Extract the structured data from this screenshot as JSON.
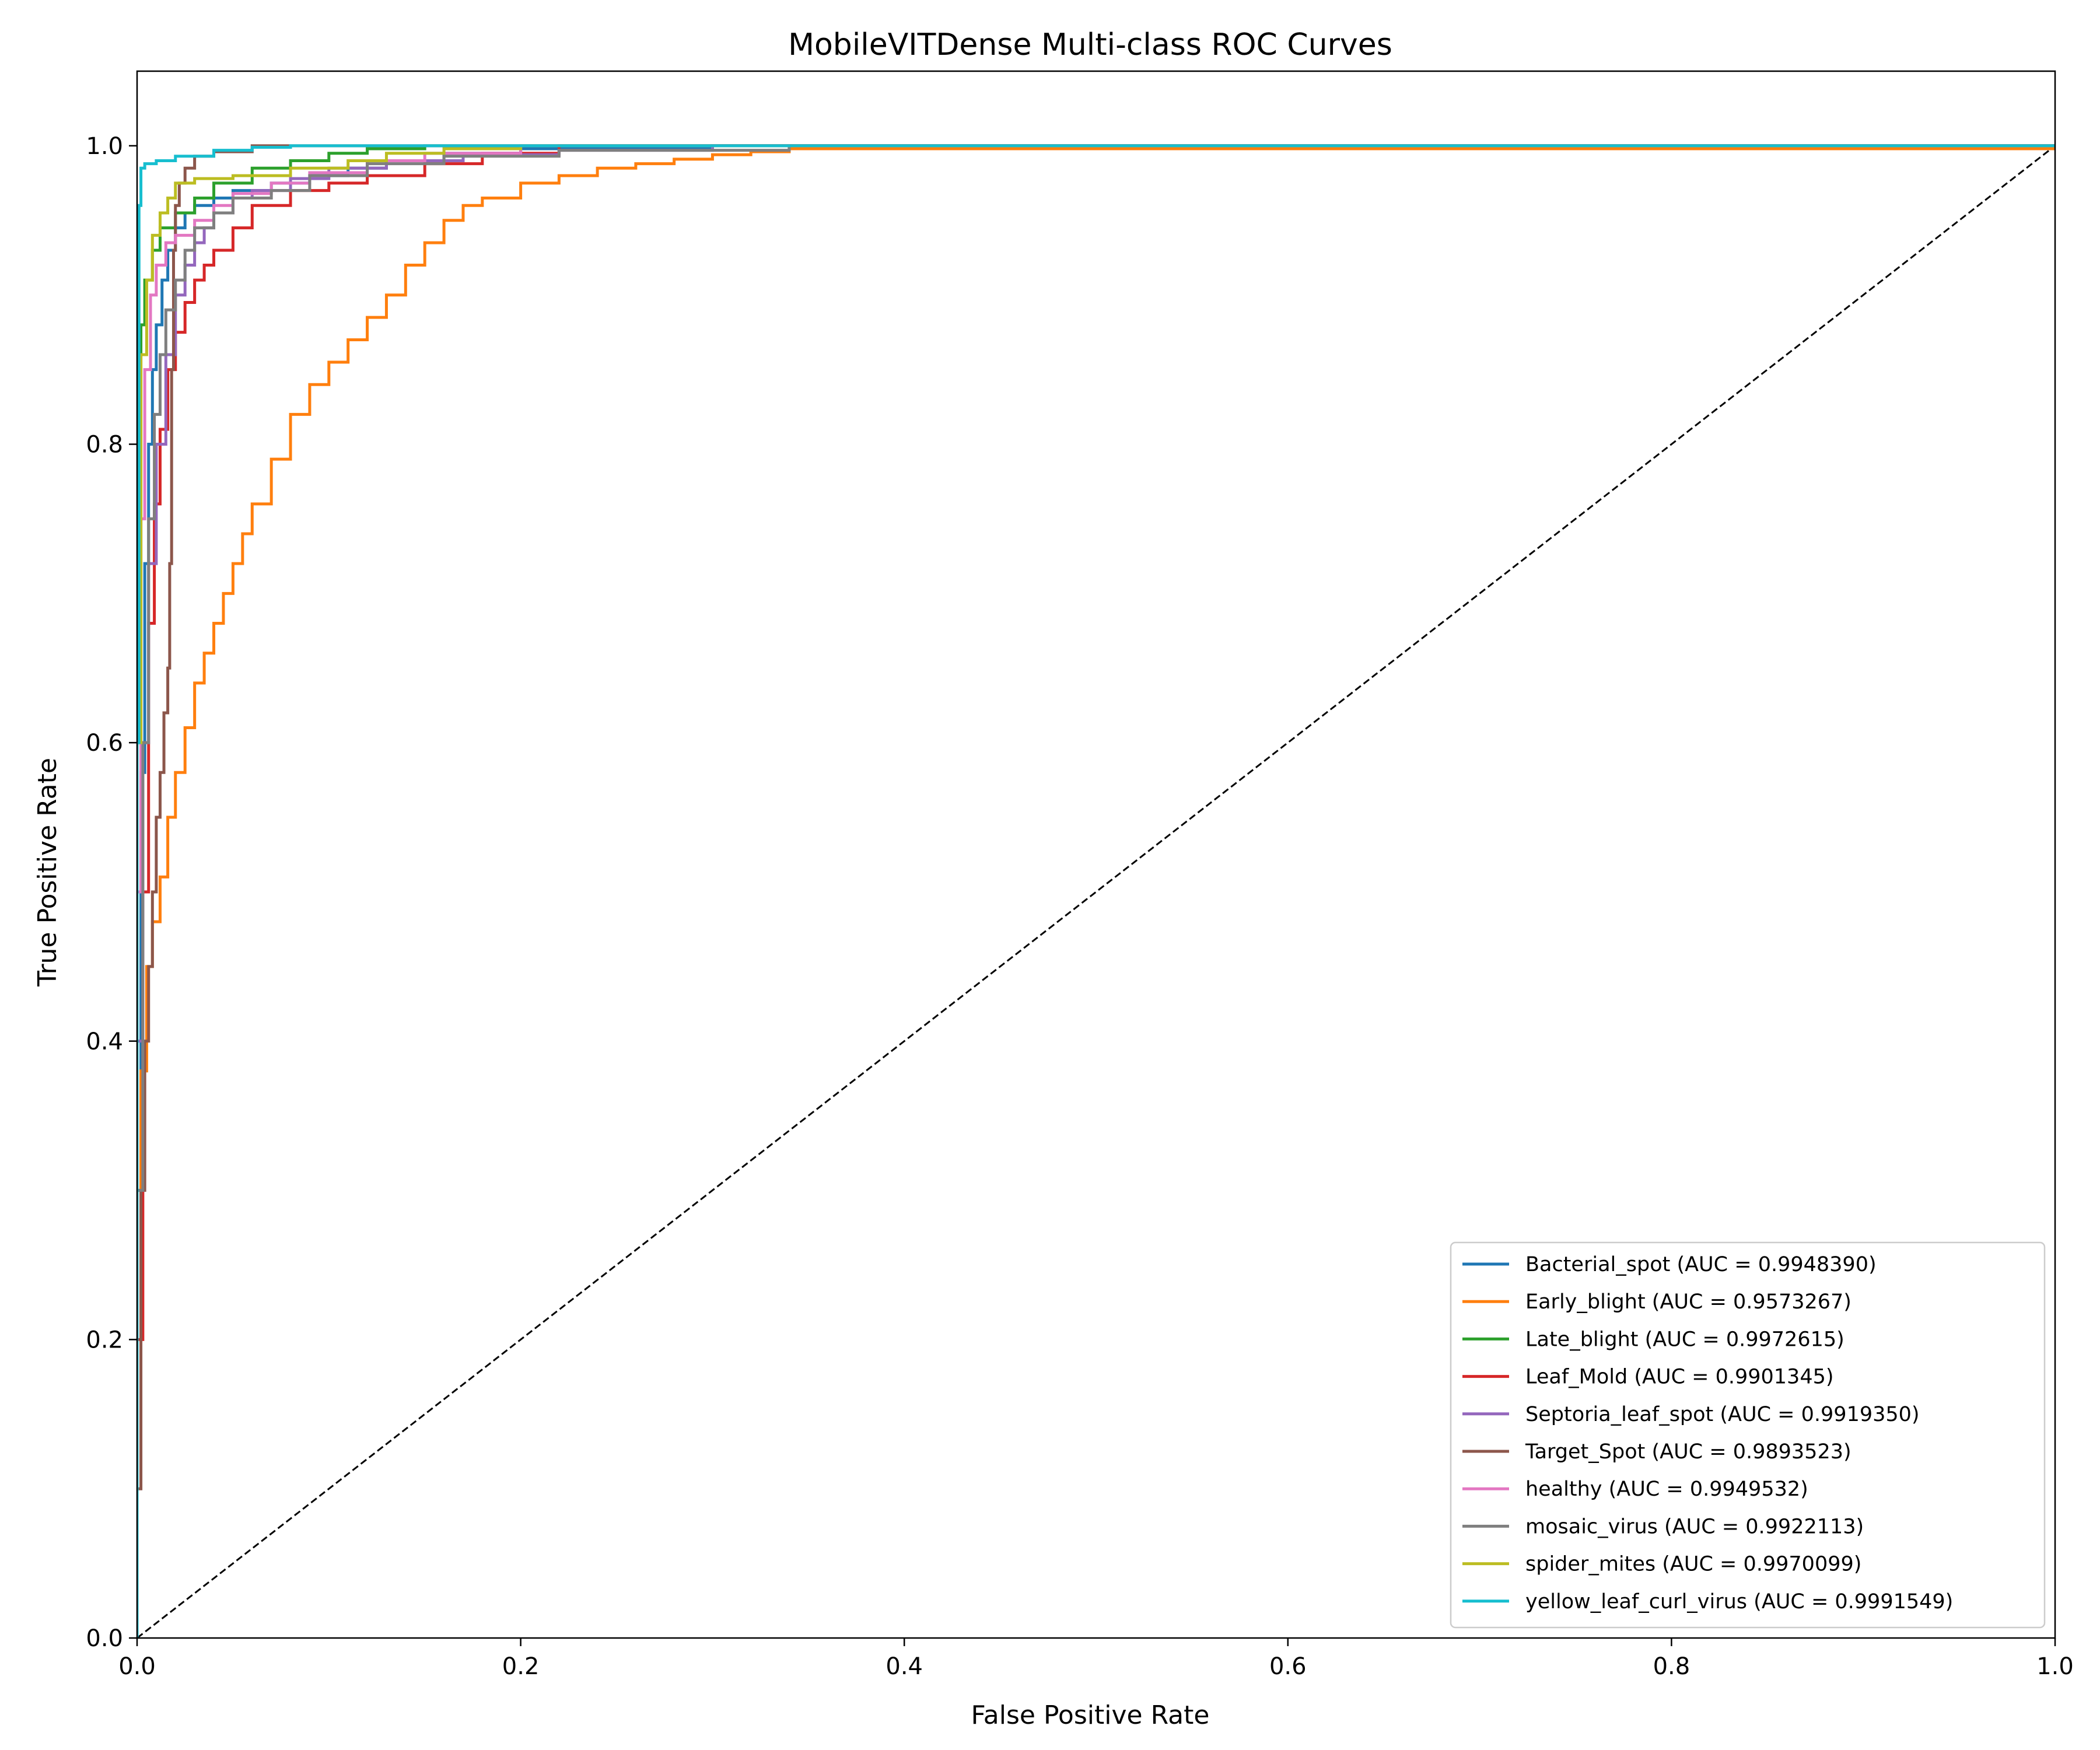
{
  "chart_data": {
    "type": "line",
    "title": "MobileVITDense Multi-class ROC Curves",
    "xlabel": "False Positive Rate",
    "ylabel": "True Positive Rate",
    "xlim": [
      0.0,
      1.0
    ],
    "ylim": [
      0.0,
      1.05
    ],
    "xticks": [
      "0.0",
      "0.2",
      "0.4",
      "0.6",
      "0.8",
      "1.0"
    ],
    "yticks": [
      "0.0",
      "0.2",
      "0.4",
      "0.6",
      "0.8",
      "1.0"
    ],
    "grid": false,
    "legend_position": "lower-right",
    "reference_line": {
      "style": "dashed",
      "color": "#000000",
      "x": [
        0,
        1
      ],
      "y": [
        0,
        1
      ]
    },
    "series": [
      {
        "name": "Bacterial_spot (AUC = 0.9948390)",
        "color": "#1f77b4",
        "x": [
          0,
          0,
          0.002,
          0.004,
          0.006,
          0.008,
          0.01,
          0.013,
          0.016,
          0.02,
          0.025,
          0.03,
          0.04,
          0.05,
          0.07,
          0.09,
          0.11,
          0.13,
          0.16,
          0.2,
          0.3,
          1.0
        ],
        "y": [
          0,
          0.3,
          0.58,
          0.72,
          0.8,
          0.85,
          0.88,
          0.91,
          0.93,
          0.945,
          0.955,
          0.96,
          0.965,
          0.97,
          0.975,
          0.98,
          0.985,
          0.99,
          0.995,
          0.998,
          1.0,
          1.0
        ]
      },
      {
        "name": "Early_blight (AUC = 0.9573267)",
        "color": "#ff7f0e",
        "x": [
          0,
          0,
          0.002,
          0.005,
          0.008,
          0.012,
          0.016,
          0.02,
          0.025,
          0.03,
          0.035,
          0.04,
          0.045,
          0.05,
          0.055,
          0.06,
          0.07,
          0.08,
          0.09,
          0.1,
          0.11,
          0.12,
          0.13,
          0.14,
          0.15,
          0.16,
          0.17,
          0.18,
          0.2,
          0.22,
          0.24,
          0.26,
          0.28,
          0.3,
          0.32,
          0.34,
          1.0
        ],
        "y": [
          0,
          0.3,
          0.38,
          0.45,
          0.48,
          0.51,
          0.55,
          0.58,
          0.61,
          0.64,
          0.66,
          0.68,
          0.7,
          0.72,
          0.74,
          0.76,
          0.79,
          0.82,
          0.84,
          0.855,
          0.87,
          0.885,
          0.9,
          0.92,
          0.935,
          0.95,
          0.96,
          0.965,
          0.975,
          0.98,
          0.985,
          0.988,
          0.991,
          0.994,
          0.996,
          0.998,
          1.0
        ]
      },
      {
        "name": "Late_blight (AUC = 0.9972615)",
        "color": "#2ca02c",
        "x": [
          0,
          0,
          0.002,
          0.004,
          0.008,
          0.012,
          0.02,
          0.03,
          0.04,
          0.06,
          0.08,
          0.1,
          0.12,
          0.15,
          1.0
        ],
        "y": [
          0,
          0.6,
          0.88,
          0.91,
          0.93,
          0.945,
          0.955,
          0.965,
          0.975,
          0.985,
          0.99,
          0.995,
          0.998,
          1.0,
          1.0
        ]
      },
      {
        "name": "Leaf_Mold (AUC = 0.9901345)",
        "color": "#d62728",
        "x": [
          0,
          0,
          0.003,
          0.006,
          0.009,
          0.012,
          0.016,
          0.02,
          0.025,
          0.03,
          0.035,
          0.04,
          0.05,
          0.06,
          0.08,
          0.1,
          0.12,
          0.15,
          0.18,
          0.22,
          1.0
        ],
        "y": [
          0,
          0.2,
          0.5,
          0.68,
          0.76,
          0.81,
          0.85,
          0.875,
          0.895,
          0.91,
          0.92,
          0.93,
          0.945,
          0.96,
          0.97,
          0.975,
          0.98,
          0.988,
          0.995,
          1.0,
          1.0
        ]
      },
      {
        "name": "Septoria_leaf_spot (AUC = 0.9919350)",
        "color": "#9467bd",
        "x": [
          0,
          0,
          0.003,
          0.006,
          0.01,
          0.015,
          0.02,
          0.025,
          0.03,
          0.035,
          0.04,
          0.05,
          0.06,
          0.08,
          0.1,
          0.13,
          0.17,
          0.22,
          0.3,
          1.0
        ],
        "y": [
          0,
          0.4,
          0.6,
          0.72,
          0.8,
          0.86,
          0.9,
          0.92,
          0.935,
          0.945,
          0.955,
          0.965,
          0.97,
          0.978,
          0.985,
          0.99,
          0.994,
          0.997,
          1.0,
          1.0
        ]
      },
      {
        "name": "Target_Spot (AUC = 0.9893523)",
        "color": "#8c564b",
        "x": [
          0,
          0,
          0.002,
          0.004,
          0.006,
          0.008,
          0.01,
          0.012,
          0.014,
          0.016,
          0.017,
          0.018,
          0.019,
          0.02,
          0.022,
          0.025,
          0.03,
          0.04,
          0.06,
          0.1,
          1.0
        ],
        "y": [
          0,
          0.1,
          0.3,
          0.4,
          0.45,
          0.5,
          0.55,
          0.58,
          0.62,
          0.65,
          0.72,
          0.85,
          0.93,
          0.96,
          0.975,
          0.985,
          0.993,
          0.996,
          1.0,
          1.0,
          1.0
        ]
      },
      {
        "name": "healthy (AUC = 0.9949532)",
        "color": "#e377c2",
        "x": [
          0,
          0,
          0.002,
          0.004,
          0.007,
          0.01,
          0.015,
          0.02,
          0.03,
          0.04,
          0.05,
          0.07,
          0.09,
          0.12,
          0.15,
          0.2,
          1.0
        ],
        "y": [
          0,
          0.5,
          0.75,
          0.85,
          0.9,
          0.92,
          0.935,
          0.94,
          0.95,
          0.96,
          0.968,
          0.975,
          0.982,
          0.99,
          0.995,
          1.0,
          1.0
        ]
      },
      {
        "name": "mosaic_virus (AUC = 0.9922113)",
        "color": "#7f7f7f",
        "x": [
          0,
          0,
          0.003,
          0.006,
          0.009,
          0.012,
          0.015,
          0.02,
          0.025,
          0.03,
          0.04,
          0.05,
          0.07,
          0.09,
          0.12,
          0.16,
          0.22,
          0.34,
          1.0
        ],
        "y": [
          0,
          0.3,
          0.6,
          0.75,
          0.82,
          0.86,
          0.89,
          0.91,
          0.93,
          0.945,
          0.955,
          0.965,
          0.97,
          0.98,
          0.988,
          0.993,
          0.997,
          1.0,
          1.0
        ]
      },
      {
        "name": "spider_mites (AUC = 0.9970099)",
        "color": "#bcbd22",
        "x": [
          0,
          0,
          0.002,
          0.005,
          0.008,
          0.012,
          0.016,
          0.02,
          0.03,
          0.05,
          0.08,
          0.11,
          0.13,
          0.16,
          0.2,
          1.0
        ],
        "y": [
          0,
          0.6,
          0.86,
          0.91,
          0.94,
          0.955,
          0.965,
          0.975,
          0.978,
          0.98,
          0.985,
          0.99,
          0.995,
          0.998,
          1.0,
          1.0
        ]
      },
      {
        "name": "yellow_leaf_curl_virus (AUC = 0.9991549)",
        "color": "#17becf",
        "x": [
          0,
          0,
          0.001,
          0.002,
          0.004,
          0.01,
          0.02,
          0.04,
          0.06,
          0.08,
          1.0
        ],
        "y": [
          0,
          0.6,
          0.96,
          0.985,
          0.988,
          0.99,
          0.993,
          0.997,
          0.999,
          1.0,
          1.0
        ]
      }
    ]
  }
}
